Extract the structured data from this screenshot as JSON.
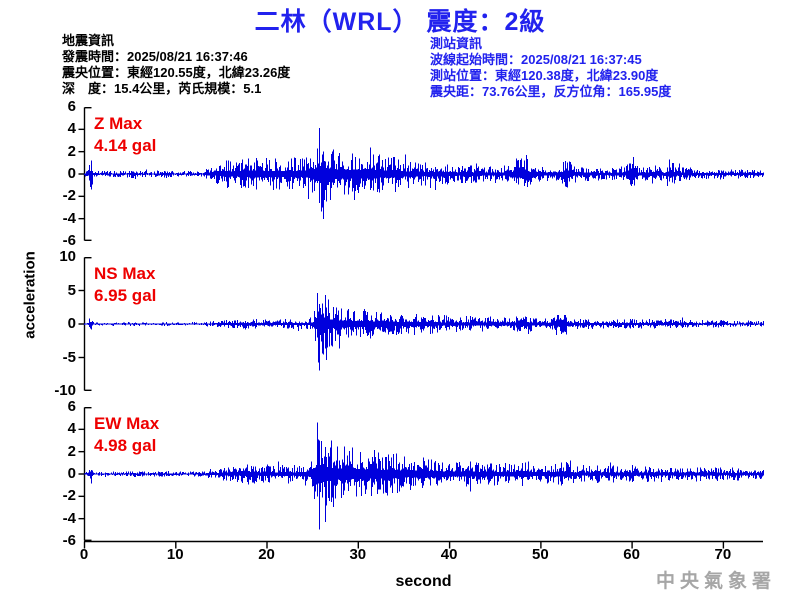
{
  "title": "二林（WRL） 震度：2級",
  "watermark": "中央氣象署",
  "colors": {
    "title_blue": "#2222EE",
    "station_info_blue": "#2222EE",
    "trace_blue": "#0000DD",
    "max_label_red": "#EE0000",
    "axis_black": "#000000",
    "watermark_gray": "#A6A6A6"
  },
  "quake_info": {
    "heading": "地震資訊",
    "lines": [
      "發震時間：2025/08/21 16:37:46",
      "震央位置：東經120.55度，北緯23.26度",
      "深　度：15.4公里，芮氏規模：5.1"
    ]
  },
  "station_info": {
    "heading": "測站資訊",
    "lines": [
      "波線起始時間：2025/08/21 16:37:45",
      "測站位置：東經120.38度，北緯23.90度",
      "震央距：73.76公里，反方位角：165.95度"
    ]
  },
  "chart_data": {
    "type": "line",
    "subtype": "seismogram-3-component",
    "xlabel": "second",
    "ylabel": "acceleration",
    "x_range": [
      0,
      74.4
    ],
    "x_ticks": [
      0,
      10,
      20,
      30,
      40,
      50,
      60,
      70
    ],
    "grid": false,
    "traces": [
      {
        "id": "Z",
        "max_label": "Z Max",
        "max_value_label": "4.14 gal",
        "max_value": 4.14,
        "ylim": [
          -6,
          6
        ],
        "yticks": [
          6,
          4,
          2,
          0,
          -2,
          -4,
          -6
        ],
        "peak_time": 25.8,
        "seed": 1042,
        "peak_spikes": [
          {
            "t": 25.8,
            "up": 4.14,
            "down": 2.6
          },
          {
            "t": 26.2,
            "up": 2.0,
            "down": 4.05
          }
        ],
        "envelope": [
          [
            0,
            0.25
          ],
          [
            0.4,
            0.3
          ],
          [
            0.55,
            1.5
          ],
          [
            0.8,
            1.5
          ],
          [
            1.0,
            0.3
          ],
          [
            3,
            0.28
          ],
          [
            5,
            0.35
          ],
          [
            5.5,
            0.5
          ],
          [
            6,
            0.3
          ],
          [
            8,
            0.28
          ],
          [
            9,
            0.45
          ],
          [
            9.5,
            0.3
          ],
          [
            11,
            0.28
          ],
          [
            13,
            0.3
          ],
          [
            13.8,
            0.7
          ],
          [
            14.5,
            0.9
          ],
          [
            15.5,
            1.3
          ],
          [
            16.5,
            1.1
          ],
          [
            17.5,
            1.5
          ],
          [
            18.5,
            1.7
          ],
          [
            19.5,
            1.4
          ],
          [
            20.5,
            1.5
          ],
          [
            21.5,
            1.4
          ],
          [
            22.5,
            1.6
          ],
          [
            23.5,
            1.5
          ],
          [
            24.5,
            1.7
          ],
          [
            25.3,
            2.6
          ],
          [
            25.8,
            4.0
          ],
          [
            26.3,
            3.2
          ],
          [
            27,
            2.5
          ],
          [
            28,
            2.2
          ],
          [
            29,
            1.9
          ],
          [
            30,
            2.1
          ],
          [
            31,
            1.7
          ],
          [
            32,
            1.9
          ],
          [
            33,
            1.6
          ],
          [
            34,
            1.7
          ],
          [
            35,
            1.3
          ],
          [
            36,
            1.2
          ],
          [
            37,
            1.1
          ],
          [
            38,
            1.1
          ],
          [
            39,
            1.0
          ],
          [
            40,
            0.9
          ],
          [
            41,
            0.8
          ],
          [
            42,
            0.9
          ],
          [
            43,
            0.8
          ],
          [
            44,
            0.7
          ],
          [
            45,
            0.7
          ],
          [
            46,
            0.8
          ],
          [
            46.7,
            0.9
          ],
          [
            48.3,
            2.2
          ],
          [
            48.9,
            0.9
          ],
          [
            50,
            0.7
          ],
          [
            52.2,
            0.7
          ],
          [
            52.8,
            2.1
          ],
          [
            53.4,
            0.9
          ],
          [
            54,
            0.7
          ],
          [
            55,
            0.7
          ],
          [
            56,
            0.6
          ],
          [
            57,
            0.6
          ],
          [
            58,
            0.6
          ],
          [
            59,
            0.7
          ],
          [
            60.2,
            1.2
          ],
          [
            60.8,
            0.7
          ],
          [
            61.5,
            0.6
          ],
          [
            62.3,
            1.1
          ],
          [
            62.9,
            0.7
          ],
          [
            63.6,
            0.6
          ],
          [
            64.2,
            1.6
          ],
          [
            64.8,
            0.8
          ],
          [
            65.5,
            0.6
          ],
          [
            66.5,
            0.6
          ],
          [
            67.5,
            0.5
          ],
          [
            68.5,
            0.5
          ],
          [
            70,
            0.5
          ],
          [
            71,
            0.4
          ],
          [
            72,
            0.4
          ],
          [
            73,
            0.4
          ],
          [
            74.4,
            0.35
          ]
        ]
      },
      {
        "id": "NS",
        "max_label": "NS Max",
        "max_value_label": "6.95 gal",
        "max_value": 6.95,
        "ylim": [
          -10,
          10
        ],
        "yticks": [
          10,
          5,
          0,
          -5,
          -10
        ],
        "peak_time": 25.7,
        "seed": 2087,
        "peak_spikes": [
          {
            "t": 25.5,
            "up": 4.6,
            "down": 2.0
          },
          {
            "t": 25.7,
            "up": 3.0,
            "down": 6.95
          },
          {
            "t": 26.5,
            "up": 2.5,
            "down": 5.4
          }
        ],
        "envelope": [
          [
            0,
            0.2
          ],
          [
            0.4,
            0.25
          ],
          [
            0.55,
            1.4
          ],
          [
            0.8,
            1.4
          ],
          [
            1.0,
            0.25
          ],
          [
            4,
            0.22
          ],
          [
            5.5,
            0.35
          ],
          [
            7,
            0.22
          ],
          [
            9,
            0.3
          ],
          [
            11,
            0.22
          ],
          [
            13,
            0.25
          ],
          [
            13.8,
            0.45
          ],
          [
            15,
            0.6
          ],
          [
            16,
            0.7
          ],
          [
            17,
            0.6
          ],
          [
            18,
            0.85
          ],
          [
            19,
            0.75
          ],
          [
            20,
            0.8
          ],
          [
            21,
            0.7
          ],
          [
            22,
            0.8
          ],
          [
            23,
            0.75
          ],
          [
            24,
            0.8
          ],
          [
            25,
            1.1
          ],
          [
            25.4,
            3.5
          ],
          [
            25.7,
            6.5
          ],
          [
            26.1,
            5.0
          ],
          [
            26.6,
            4.2
          ],
          [
            27.2,
            3.4
          ],
          [
            28,
            2.9
          ],
          [
            29,
            2.6
          ],
          [
            30,
            2.3
          ],
          [
            31,
            2.4
          ],
          [
            32,
            2.0
          ],
          [
            33,
            2.2
          ],
          [
            34,
            1.8
          ],
          [
            35,
            1.6
          ],
          [
            36,
            1.7
          ],
          [
            37,
            1.5
          ],
          [
            38,
            1.6
          ],
          [
            39,
            1.4
          ],
          [
            40,
            1.4
          ],
          [
            41,
            1.2
          ],
          [
            42,
            1.3
          ],
          [
            43,
            1.1
          ],
          [
            44,
            1.2
          ],
          [
            45,
            1.0
          ],
          [
            46,
            1.1
          ],
          [
            47,
            1.0
          ],
          [
            48.4,
            1.8
          ],
          [
            49,
            1.1
          ],
          [
            50,
            0.9
          ],
          [
            51,
            0.9
          ],
          [
            52.6,
            2.6
          ],
          [
            53.2,
            1.0
          ],
          [
            54,
            0.8
          ],
          [
            55,
            0.8
          ],
          [
            56,
            0.7
          ],
          [
            57,
            0.7
          ],
          [
            58,
            0.7
          ],
          [
            59,
            0.7
          ],
          [
            60,
            0.8
          ],
          [
            61,
            0.7
          ],
          [
            62,
            0.8
          ],
          [
            63,
            0.7
          ],
          [
            64,
            0.8
          ],
          [
            65,
            0.7
          ],
          [
            66,
            0.7
          ],
          [
            67,
            0.6
          ],
          [
            68,
            0.6
          ],
          [
            69,
            0.6
          ],
          [
            70,
            0.6
          ],
          [
            71,
            0.5
          ],
          [
            72,
            0.5
          ],
          [
            73,
            0.5
          ],
          [
            74.4,
            0.45
          ]
        ]
      },
      {
        "id": "EW",
        "max_label": "EW Max",
        "max_value_label": "4.98 gal",
        "max_value": 4.98,
        "ylim": [
          -6,
          6
        ],
        "yticks": [
          6,
          4,
          2,
          0,
          -2,
          -4,
          -6
        ],
        "peak_time": 25.7,
        "seed": 3303,
        "peak_spikes": [
          {
            "t": 25.5,
            "up": 4.6,
            "down": 2.0
          },
          {
            "t": 25.7,
            "up": 3.0,
            "down": 4.98
          },
          {
            "t": 26.4,
            "up": 2.4,
            "down": 4.3
          }
        ],
        "envelope": [
          [
            0,
            0.18
          ],
          [
            0.4,
            0.22
          ],
          [
            0.55,
            0.9
          ],
          [
            0.8,
            0.9
          ],
          [
            1.0,
            0.22
          ],
          [
            4,
            0.2
          ],
          [
            5.5,
            0.3
          ],
          [
            7,
            0.2
          ],
          [
            9,
            0.28
          ],
          [
            11,
            0.2
          ],
          [
            13,
            0.25
          ],
          [
            13.8,
            0.5
          ],
          [
            15,
            0.6
          ],
          [
            16,
            0.8
          ],
          [
            17,
            0.7
          ],
          [
            18,
            1.0
          ],
          [
            19,
            0.85
          ],
          [
            20,
            0.9
          ],
          [
            21,
            0.8
          ],
          [
            22,
            0.9
          ],
          [
            23,
            0.85
          ],
          [
            24,
            0.95
          ],
          [
            25,
            1.4
          ],
          [
            25.3,
            3.0
          ],
          [
            25.7,
            4.7
          ],
          [
            26.1,
            4.0
          ],
          [
            26.6,
            3.4
          ],
          [
            27.2,
            3.0
          ],
          [
            28,
            2.6
          ],
          [
            29,
            2.3
          ],
          [
            30,
            2.5
          ],
          [
            31,
            2.1
          ],
          [
            32,
            2.3
          ],
          [
            33,
            1.9
          ],
          [
            33.6,
            2.3
          ],
          [
            34.5,
            1.8
          ],
          [
            35.5,
            1.6
          ],
          [
            36.5,
            1.7
          ],
          [
            37.5,
            1.4
          ],
          [
            38.5,
            1.5
          ],
          [
            39.5,
            1.3
          ],
          [
            40.5,
            1.2
          ],
          [
            41.5,
            1.1
          ],
          [
            42.5,
            1.2
          ],
          [
            43.5,
            1.0
          ],
          [
            44.5,
            1.1
          ],
          [
            45.5,
            1.0
          ],
          [
            46.5,
            1.1
          ],
          [
            47.5,
            1.0
          ],
          [
            48.4,
            1.4
          ],
          [
            49,
            0.9
          ],
          [
            50,
            0.9
          ],
          [
            51,
            0.9
          ],
          [
            52.6,
            1.3
          ],
          [
            53.2,
            0.9
          ],
          [
            54,
            0.8
          ],
          [
            55,
            0.8
          ],
          [
            56,
            0.8
          ],
          [
            57,
            0.8
          ],
          [
            58,
            0.8
          ],
          [
            59,
            0.8
          ],
          [
            60,
            0.8
          ],
          [
            61,
            0.7
          ],
          [
            62,
            0.8
          ],
          [
            63,
            0.7
          ],
          [
            64,
            0.8
          ],
          [
            65,
            0.7
          ],
          [
            66,
            0.7
          ],
          [
            67,
            0.7
          ],
          [
            68,
            0.6
          ],
          [
            69,
            0.7
          ],
          [
            70,
            0.6
          ],
          [
            71,
            0.6
          ],
          [
            72,
            0.6
          ],
          [
            73,
            0.5
          ],
          [
            74.4,
            0.5
          ]
        ]
      }
    ]
  }
}
